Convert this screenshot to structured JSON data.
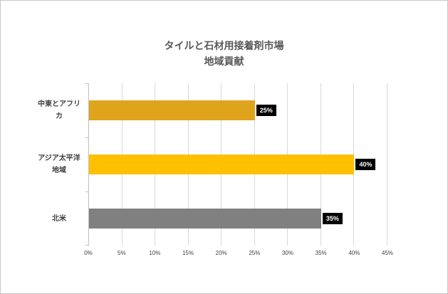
{
  "chart": {
    "title_line1": "タイルと石材用接着剤市場",
    "title_line2": "地域貢献"
  },
  "chart_data": {
    "type": "bar",
    "orientation": "horizontal",
    "title": "タイルと石材用接着剤市場 地域貢献",
    "categories": [
      "中東とアフリカ",
      "アジア太平洋地域",
      "北米"
    ],
    "values": [
      25,
      40,
      35
    ],
    "value_labels": [
      "25%",
      "40%",
      "35%"
    ],
    "bar_colors": [
      "#DFA41C",
      "#FFC000",
      "#808080"
    ],
    "xlim": [
      0,
      45
    ],
    "x_tick_step": 5,
    "x_ticks": [
      "0%",
      "5%",
      "10%",
      "15%",
      "20%",
      "25%",
      "30%",
      "35%",
      "40%",
      "45%"
    ],
    "xlabel": "",
    "ylabel": "",
    "grid": true,
    "legend": false,
    "data_label_bg": "#000000",
    "data_label_text_color": "#FFFFFF",
    "title_color": "#595959",
    "axis_text_color": "#404040"
  }
}
